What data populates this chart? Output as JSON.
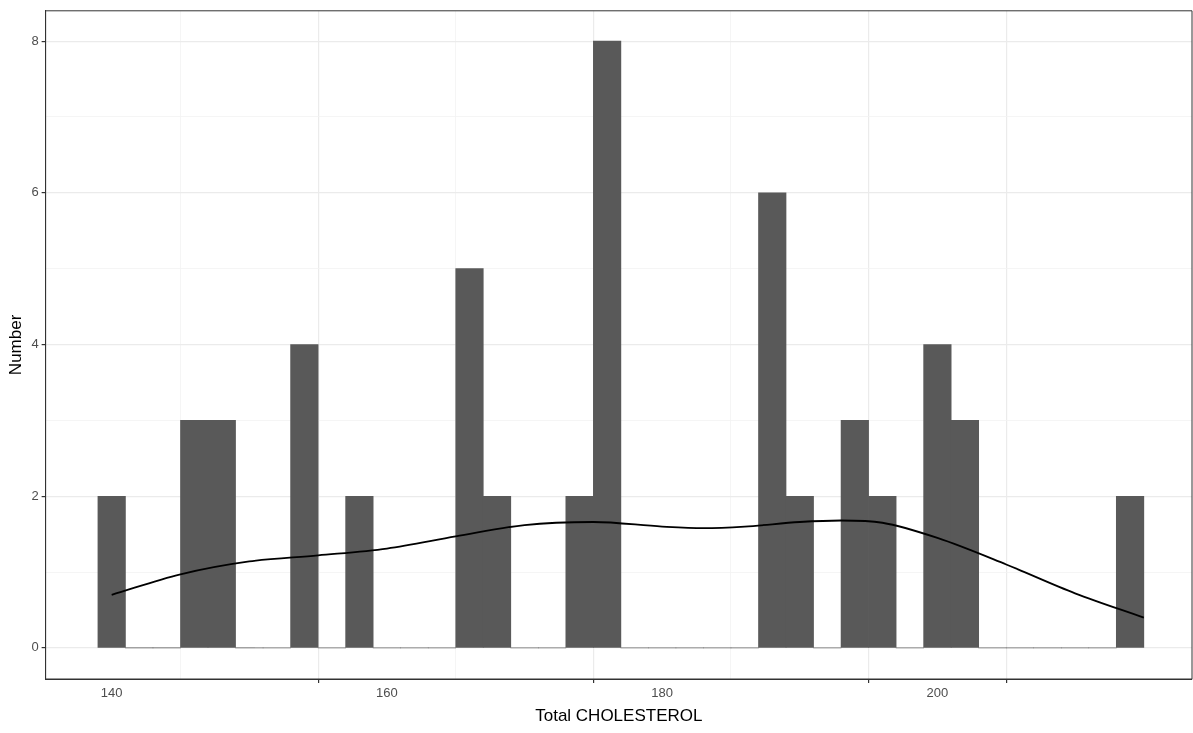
{
  "chart_data": {
    "type": "histogram",
    "xlabel": "Total CHOLESTEROL",
    "ylabel": "Number",
    "bins": [
      139,
      141,
      143,
      145,
      147,
      149,
      151,
      153,
      155,
      157,
      159,
      161,
      163,
      165,
      167,
      169,
      171,
      173,
      175,
      177,
      179,
      181,
      183,
      185,
      187,
      189,
      191,
      193,
      195,
      197,
      199,
      201,
      203,
      205,
      207,
      209,
      211,
      213,
      215
    ],
    "values": [
      2,
      0,
      0,
      3,
      3,
      0,
      0,
      4,
      0,
      2,
      0,
      0,
      0,
      5,
      2,
      0,
      0,
      2,
      8,
      0,
      0,
      0,
      0,
      0,
      6,
      2,
      0,
      3,
      2,
      0,
      4,
      3,
      0,
      0,
      0,
      0,
      0,
      2
    ],
    "color": "#595959",
    "series": [
      {
        "type": "line",
        "color": "#000000",
        "x": [
          140,
          145,
          150,
          155,
          160,
          165,
          170,
          175,
          180,
          183,
          186,
          190,
          193,
          196,
          200,
          205,
          210,
          215
        ],
        "values": [
          0.7,
          0.97,
          1.14,
          1.22,
          1.31,
          1.47,
          1.62,
          1.66,
          1.6,
          1.58,
          1.6,
          1.66,
          1.68,
          1.65,
          1.45,
          1.1,
          0.72,
          0.4
        ]
      }
    ],
    "xlim": [
      135.2,
      218.5
    ],
    "ylim": [
      -0.41,
      8.4
    ],
    "xticks": [
      140,
      160,
      180,
      200
    ],
    "yticks": [
      0,
      2,
      4,
      6,
      8
    ],
    "grid": true,
    "legend": false,
    "marker": "none",
    "line_style": "solid"
  }
}
